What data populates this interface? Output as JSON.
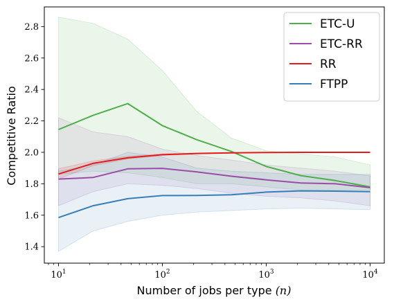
{
  "chart_data": {
    "type": "line",
    "title": "",
    "xlabel_text": "Number of jobs per type",
    "xlabel_var": "(n)",
    "ylabel": "Competitive Ratio",
    "xscale": "log",
    "xlim": [
      7.3,
      13700
    ],
    "ylim": [
      1.295,
      2.925
    ],
    "xticks": [
      10,
      100,
      1000,
      10000
    ],
    "xtick_labels": [
      {
        "base": "10",
        "exp": "1"
      },
      {
        "base": "10",
        "exp": "2"
      },
      {
        "base": "10",
        "exp": "3"
      },
      {
        "base": "10",
        "exp": "4"
      }
    ],
    "yticks": [
      1.4,
      1.6,
      1.8,
      2.0,
      2.2,
      2.4,
      2.6,
      2.8
    ],
    "ytick_labels": [
      "1.4",
      "1.6",
      "1.8",
      "2.0",
      "2.2",
      "2.4",
      "2.6",
      "2.8"
    ],
    "grid": false,
    "legend_position": "top-right",
    "x": [
      10,
      21.5,
      46.4,
      100,
      215,
      464,
      1000,
      2150,
      4640,
      10000
    ],
    "series": [
      {
        "name": "ETC-U",
        "color": "#4daf4a",
        "values": [
          2.145,
          2.235,
          2.31,
          2.17,
          2.08,
          2.005,
          1.91,
          1.852,
          1.82,
          1.78
        ],
        "lower": [
          1.86,
          1.88,
          1.87,
          1.84,
          1.8,
          1.8,
          1.78,
          1.76,
          1.76,
          1.76
        ],
        "upper": [
          2.86,
          2.82,
          2.72,
          2.52,
          2.26,
          2.09,
          2.01,
          1.99,
          1.97,
          1.92
        ]
      },
      {
        "name": "ETC-RR",
        "color": "#984ea3",
        "values": [
          1.83,
          1.84,
          1.895,
          1.898,
          1.875,
          1.848,
          1.825,
          1.805,
          1.8,
          1.775
        ],
        "lower": [
          1.66,
          1.75,
          1.8,
          1.79,
          1.77,
          1.74,
          1.72,
          1.71,
          1.69,
          1.66
        ],
        "upper": [
          2.22,
          2.13,
          2.1,
          2.02,
          1.98,
          1.95,
          1.92,
          1.9,
          1.88,
          1.85
        ]
      },
      {
        "name": "RR",
        "color": "#e41a1c",
        "values": [
          1.862,
          1.93,
          1.965,
          1.985,
          1.993,
          1.997,
          1.999,
          2.0,
          2.0,
          2.0
        ],
        "lower": [
          1.83,
          1.915,
          1.958,
          1.98,
          1.99,
          1.995,
          1.998,
          1.999,
          2.0,
          2.0
        ],
        "upper": [
          1.895,
          1.945,
          1.975,
          1.99,
          1.996,
          1.999,
          2.0,
          2.0,
          2.0,
          2.0
        ]
      },
      {
        "name": "FTPP",
        "color": "#377eb8",
        "values": [
          1.585,
          1.66,
          1.705,
          1.725,
          1.726,
          1.73,
          1.747,
          1.755,
          1.753,
          1.75
        ],
        "lower": [
          1.37,
          1.5,
          1.56,
          1.6,
          1.62,
          1.63,
          1.64,
          1.645,
          1.64,
          1.635
        ],
        "upper": [
          1.88,
          1.92,
          2.0,
          1.97,
          1.9,
          1.88,
          1.87,
          1.86,
          1.86,
          1.86
        ]
      }
    ]
  }
}
